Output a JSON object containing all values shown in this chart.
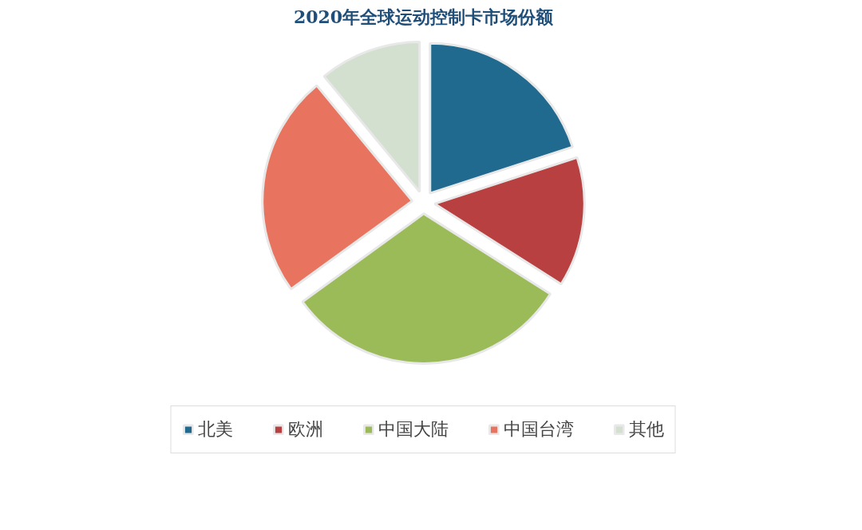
{
  "chart_data": {
    "type": "pie",
    "title": "2020年全球运动控制卡市场份额",
    "categories": [
      "北美",
      "欧洲",
      "中国大陆",
      "中国台湾",
      "其他"
    ],
    "values": [
      20,
      14,
      31,
      24,
      11
    ],
    "colors": [
      "#1f6a8e",
      "#b94040",
      "#9bbb59",
      "#e8735e",
      "#d3e0cf"
    ],
    "legend": "bottom"
  }
}
